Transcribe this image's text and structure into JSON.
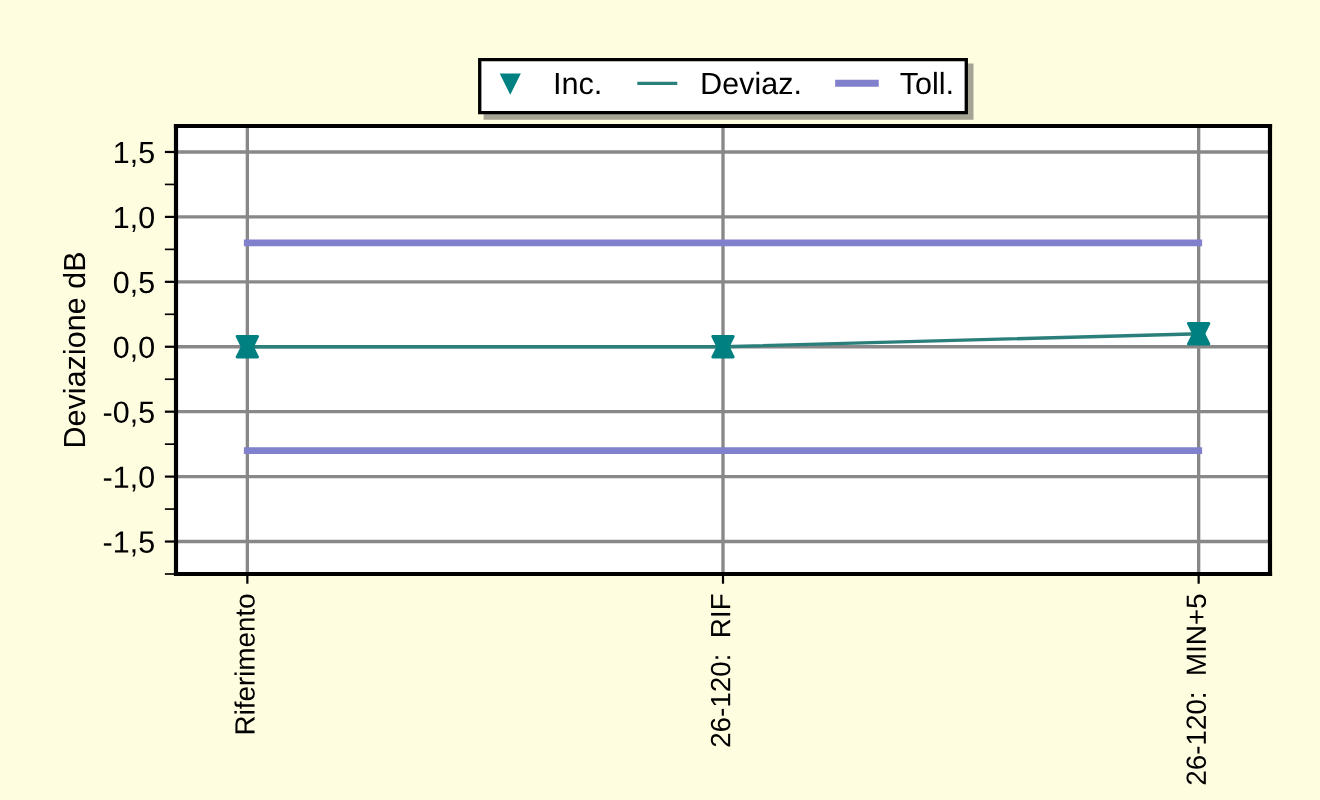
{
  "chart_data": {
    "type": "line",
    "ylabel": "Deviazione dB",
    "categories": [
      "Riferimento",
      "26-120:  RIF",
      "26-120:  MIN+5"
    ],
    "series": [
      {
        "name": "Inc.",
        "type": "scatter",
        "color": "#008080",
        "marker": "triangle",
        "values": [
          0,
          0,
          0.1
        ]
      },
      {
        "name": "Deviaz.",
        "color": "#2a7f7a",
        "marker": "triangle",
        "values": [
          0,
          0,
          0.1
        ]
      },
      {
        "name": "Toll.",
        "color": "#8080cc",
        "values": [
          0.8,
          0.8,
          0.8
        ]
      },
      {
        "color": "#8080cc",
        "values": [
          -0.8,
          -0.8,
          -0.8
        ]
      }
    ],
    "ylim": [
      -1.75,
      1.7
    ],
    "yticks": [
      {
        "value": -1.5,
        "label": "-1,5"
      },
      {
        "value": -1.0,
        "label": "-1,0"
      },
      {
        "value": -0.5,
        "label": "-0,5"
      },
      {
        "value": 0,
        "label": "0,0"
      },
      {
        "value": 0.5,
        "label": "0,5"
      },
      {
        "value": 1.0,
        "label": "1,0"
      },
      {
        "value": 1.5,
        "label": "1,5"
      }
    ],
    "grid": true,
    "legend": "top"
  }
}
